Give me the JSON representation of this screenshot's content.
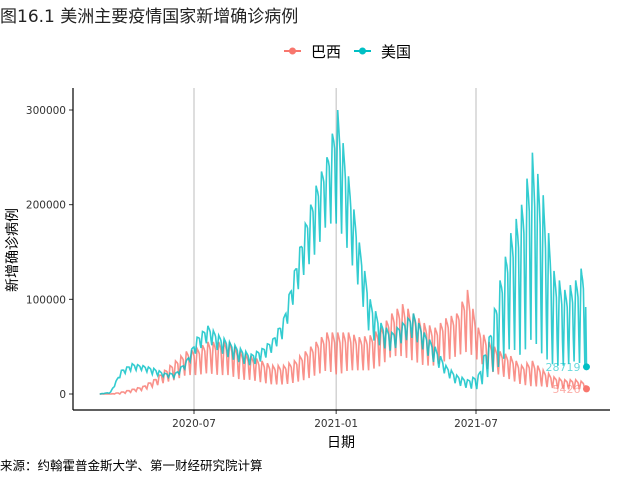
{
  "chart_data": {
    "type": "line",
    "title": "图16.1 美洲主要疫情国家新增确诊病例",
    "xlabel": "日期",
    "ylabel": "新增确诊病例",
    "caption": "来源：约翰霍普金斯大学、第一财经研究院计算",
    "x_start": "2020-03-01",
    "x_step_days": 14,
    "x_ticks": [
      "2020-07",
      "2021-01",
      "2021-07"
    ],
    "y_ticks": [
      "0",
      "100000",
      "200000",
      "300000"
    ],
    "ylim": [
      0,
      300000
    ],
    "legend_position": "top",
    "grid": "vertical major lines",
    "note": "Each point is a 14-day sample giving the high and low of the daily (weekly-cyclic) new case counts",
    "series": [
      {
        "name": "巴西",
        "color": "#F8766D",
        "end_label": "5426",
        "end_value": 5426,
        "high": [
          0,
          0,
          2000,
          5000,
          8000,
          15000,
          25000,
          35000,
          45000,
          48000,
          55000,
          55000,
          55000,
          45000,
          40000,
          35000,
          30000,
          30000,
          35000,
          45000,
          55000,
          65000,
          65000,
          65000,
          60000,
          62000,
          70000,
          85000,
          95000,
          85000,
          75000,
          70000,
          80000,
          85000,
          110000,
          70000,
          55000,
          45000,
          40000,
          30000,
          35000,
          25000,
          18000,
          15000,
          15000,
          12000
        ],
        "low": [
          0,
          0,
          0,
          2000,
          4000,
          8000,
          12000,
          15000,
          20000,
          20000,
          22000,
          20000,
          20000,
          15000,
          15000,
          12000,
          10000,
          10000,
          12000,
          15000,
          20000,
          25000,
          20000,
          25000,
          25000,
          25000,
          30000,
          40000,
          40000,
          35000,
          30000,
          30000,
          35000,
          40000,
          45000,
          35000,
          25000,
          20000,
          15000,
          10000,
          8000,
          8000,
          6000,
          5000,
          5000,
          5426
        ]
      },
      {
        "name": "美国",
        "color": "#00BFC4",
        "end_label": "28719",
        "end_value": 28719,
        "high": [
          0,
          2000,
          25000,
          32000,
          30000,
          27000,
          22000,
          22000,
          35000,
          60000,
          72000,
          62000,
          55000,
          48000,
          42000,
          48000,
          58000,
          80000,
          130000,
          180000,
          220000,
          250000,
          300000,
          230000,
          160000,
          100000,
          75000,
          65000,
          75000,
          85000,
          65000,
          50000,
          30000,
          20000,
          15000,
          20000,
          60000,
          120000,
          170000,
          200000,
          255000,
          210000,
          130000,
          110000,
          120000,
          145000
        ],
        "low": [
          0,
          1000,
          20000,
          25000,
          25000,
          20000,
          18000,
          17000,
          28000,
          45000,
          55000,
          45000,
          38000,
          33000,
          30000,
          35000,
          45000,
          60000,
          100000,
          130000,
          150000,
          180000,
          180000,
          150000,
          110000,
          60000,
          50000,
          45000,
          55000,
          60000,
          45000,
          32000,
          20000,
          10000,
          6000,
          5000,
          20000,
          30000,
          50000,
          40000,
          60000,
          40000,
          30000,
          30000,
          35000,
          28719
        ]
      }
    ]
  }
}
